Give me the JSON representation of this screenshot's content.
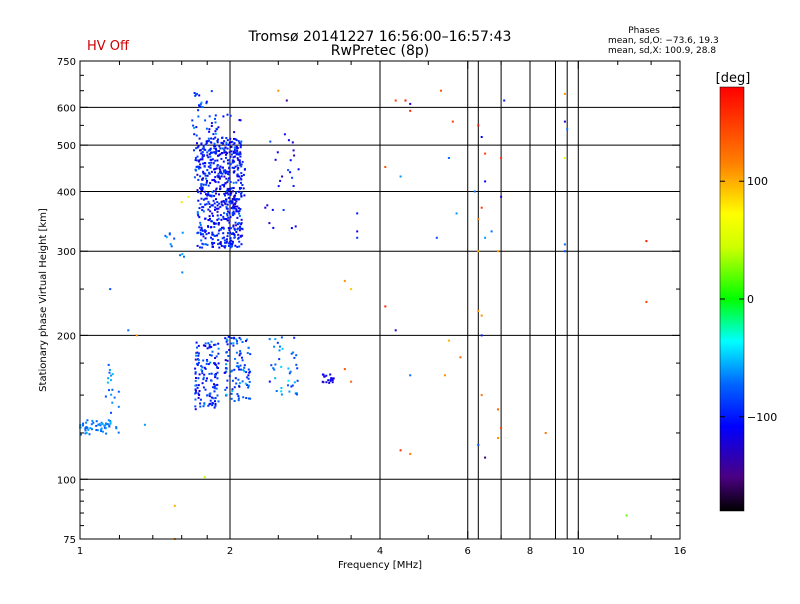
{
  "header": {
    "title_line1": "Tromsø 20141227 16:56:00–16:57:43",
    "title_line2": "RwPretec (8p)",
    "status": "HV Off",
    "status_color": "#cc0000",
    "stats_title": "Phases",
    "stats_line1": "mean, sd,O: −73.6, 19.3",
    "stats_line2": "mean, sd,X: 100.9, 28.8"
  },
  "colorbar": {
    "unit_label": "[deg]",
    "min": -180,
    "max": 180,
    "tick_values": [
      100,
      0,
      -100
    ],
    "tick_labels": [
      "100",
      "0",
      "−100"
    ]
  },
  "chart_data": {
    "type": "scatter",
    "xlabel": "Frequency [MHz]",
    "ylabel": "Stationary phase Virtual Height [km]",
    "x_scale": "log",
    "y_scale": "log",
    "xlim": [
      1,
      16
    ],
    "ylim": [
      75,
      750
    ],
    "x_ticks": [
      1,
      2,
      4,
      6,
      8,
      10,
      16
    ],
    "x_tick_labels": [
      "1",
      "2",
      "4",
      "6",
      "8",
      "10",
      "16"
    ],
    "x_gridlines": [
      2,
      4,
      6,
      8,
      10,
      6.3,
      7,
      9,
      9.5
    ],
    "y_ticks": [
      75,
      100,
      200,
      300,
      400,
      500,
      600,
      750
    ],
    "y_tick_labels": [
      "75",
      "100",
      "200",
      "300",
      "400",
      "500",
      "600",
      "750"
    ],
    "y_gridlines": [
      100,
      200,
      300,
      400,
      500,
      600
    ],
    "grid": true,
    "color_encodes": "phase [deg]",
    "clusters": [
      {
        "x_range": [
          1.72,
          2.12
        ],
        "y_range": [
          305,
          520
        ],
        "phase_mean": -100,
        "phase_sd": 15,
        "count": 520
      },
      {
        "x_range": [
          1.68,
          1.88
        ],
        "y_range": [
          420,
          650
        ],
        "phase_mean": -90,
        "phase_sd": 15,
        "count": 60
      },
      {
        "x_range": [
          1.8,
          2.15
        ],
        "y_range": [
          330,
          580
        ],
        "phase_mean": -110,
        "phase_sd": 10,
        "count": 90
      },
      {
        "x_range": [
          2.35,
          2.75
        ],
        "y_range": [
          330,
          560
        ],
        "phase_mean": -105,
        "phase_sd": 15,
        "count": 25
      },
      {
        "x_range": [
          1.0,
          1.15
        ],
        "y_range": [
          124,
          133
        ],
        "phase_mean": -65,
        "phase_sd": 8,
        "count": 45
      },
      {
        "x_range": [
          1.12,
          1.2
        ],
        "y_range": [
          125,
          175
        ],
        "phase_mean": -70,
        "phase_sd": 12,
        "count": 25
      },
      {
        "x_range": [
          1.7,
          1.9
        ],
        "y_range": [
          140,
          195
        ],
        "phase_mean": -95,
        "phase_sd": 20,
        "count": 130
      },
      {
        "x_range": [
          1.95,
          2.2
        ],
        "y_range": [
          145,
          200
        ],
        "phase_mean": -85,
        "phase_sd": 20,
        "count": 100
      },
      {
        "x_range": [
          2.4,
          2.75
        ],
        "y_range": [
          150,
          200
        ],
        "phase_mean": -70,
        "phase_sd": 15,
        "count": 40
      },
      {
        "x_range": [
          3.05,
          3.25
        ],
        "y_range": [
          159,
          166
        ],
        "phase_mean": -115,
        "phase_sd": 8,
        "count": 18
      },
      {
        "x_range": [
          1.48,
          1.62
        ],
        "y_range": [
          270,
          330
        ],
        "phase_mean": -70,
        "phase_sd": 10,
        "count": 12
      }
    ],
    "points": [
      {
        "x": 2.5,
        "y": 650,
        "phase": 110
      },
      {
        "x": 2.6,
        "y": 620,
        "phase": -140
      },
      {
        "x": 4.3,
        "y": 620,
        "phase": 150
      },
      {
        "x": 4.5,
        "y": 620,
        "phase": 170
      },
      {
        "x": 4.6,
        "y": 590,
        "phase": 165
      },
      {
        "x": 4.6,
        "y": 610,
        "phase": -120
      },
      {
        "x": 5.3,
        "y": 650,
        "phase": 140
      },
      {
        "x": 5.6,
        "y": 560,
        "phase": 150
      },
      {
        "x": 6.3,
        "y": 550,
        "phase": 170
      },
      {
        "x": 6.5,
        "y": 480,
        "phase": 150
      },
      {
        "x": 6.5,
        "y": 420,
        "phase": -110
      },
      {
        "x": 7.1,
        "y": 620,
        "phase": -100
      },
      {
        "x": 7.0,
        "y": 470,
        "phase": 155
      },
      {
        "x": 7.0,
        "y": 390,
        "phase": -120
      },
      {
        "x": 9.4,
        "y": 640,
        "phase": 110
      },
      {
        "x": 9.4,
        "y": 560,
        "phase": -120
      },
      {
        "x": 9.5,
        "y": 540,
        "phase": -70
      },
      {
        "x": 9.4,
        "y": 470,
        "phase": 60
      },
      {
        "x": 9.4,
        "y": 310,
        "phase": -70
      },
      {
        "x": 9.4,
        "y": 300,
        "phase": -80
      },
      {
        "x": 3.6,
        "y": 360,
        "phase": -100
      },
      {
        "x": 3.6,
        "y": 330,
        "phase": -120
      },
      {
        "x": 3.6,
        "y": 320,
        "phase": -90
      },
      {
        "x": 4.1,
        "y": 450,
        "phase": 140
      },
      {
        "x": 4.4,
        "y": 430,
        "phase": -60
      },
      {
        "x": 5.2,
        "y": 320,
        "phase": -80
      },
      {
        "x": 5.5,
        "y": 470,
        "phase": -70
      },
      {
        "x": 5.7,
        "y": 360,
        "phase": -60
      },
      {
        "x": 6.2,
        "y": 400,
        "phase": -70
      },
      {
        "x": 6.3,
        "y": 350,
        "phase": 120
      },
      {
        "x": 6.3,
        "y": 300,
        "phase": 100
      },
      {
        "x": 6.4,
        "y": 520,
        "phase": -110
      },
      {
        "x": 6.4,
        "y": 370,
        "phase": 150
      },
      {
        "x": 6.5,
        "y": 320,
        "phase": -60
      },
      {
        "x": 6.7,
        "y": 330,
        "phase": -70
      },
      {
        "x": 6.9,
        "y": 300,
        "phase": 110
      },
      {
        "x": 3.4,
        "y": 260,
        "phase": 110
      },
      {
        "x": 3.5,
        "y": 250,
        "phase": 90
      },
      {
        "x": 4.1,
        "y": 230,
        "phase": 160
      },
      {
        "x": 4.3,
        "y": 205,
        "phase": -130
      },
      {
        "x": 5.5,
        "y": 195,
        "phase": 100
      },
      {
        "x": 5.8,
        "y": 180,
        "phase": 130
      },
      {
        "x": 6.3,
        "y": 225,
        "phase": 110
      },
      {
        "x": 6.4,
        "y": 200,
        "phase": -100
      },
      {
        "x": 6.4,
        "y": 220,
        "phase": 110
      },
      {
        "x": 3.4,
        "y": 170,
        "phase": 140
      },
      {
        "x": 3.5,
        "y": 160,
        "phase": 130
      },
      {
        "x": 4.6,
        "y": 165,
        "phase": -70
      },
      {
        "x": 6.4,
        "y": 150,
        "phase": 120
      },
      {
        "x": 6.9,
        "y": 140,
        "phase": 130
      },
      {
        "x": 5.4,
        "y": 165,
        "phase": 110
      },
      {
        "x": 4.4,
        "y": 115,
        "phase": 160
      },
      {
        "x": 4.6,
        "y": 113,
        "phase": 120
      },
      {
        "x": 6.3,
        "y": 118,
        "phase": -80
      },
      {
        "x": 6.5,
        "y": 111,
        "phase": -160
      },
      {
        "x": 6.9,
        "y": 122,
        "phase": 110
      },
      {
        "x": 7.0,
        "y": 128,
        "phase": 150
      },
      {
        "x": 8.6,
        "y": 125,
        "phase": 120
      },
      {
        "x": 12.5,
        "y": 84,
        "phase": 20
      },
      {
        "x": 13.7,
        "y": 235,
        "phase": 150
      },
      {
        "x": 13.7,
        "y": 315,
        "phase": 170
      },
      {
        "x": 1.55,
        "y": 88,
        "phase": 100
      },
      {
        "x": 1.55,
        "y": 75,
        "phase": 110
      },
      {
        "x": 1.78,
        "y": 101,
        "phase": 40
      },
      {
        "x": 1.15,
        "y": 250,
        "phase": -80
      },
      {
        "x": 1.25,
        "y": 205,
        "phase": -70
      },
      {
        "x": 1.3,
        "y": 200,
        "phase": 110
      },
      {
        "x": 1.35,
        "y": 130,
        "phase": -60
      },
      {
        "x": 1.6,
        "y": 380,
        "phase": 80
      },
      {
        "x": 1.65,
        "y": 390,
        "phase": 60
      }
    ]
  }
}
